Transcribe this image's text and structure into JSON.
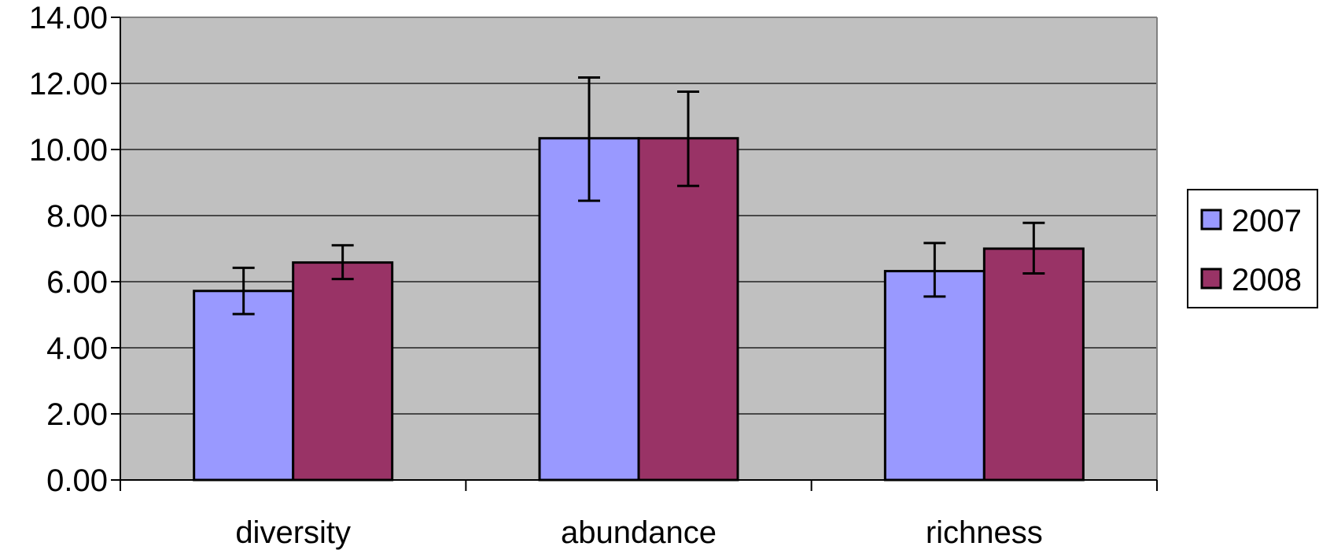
{
  "chart_data": {
    "type": "bar",
    "categories": [
      "diversity",
      "abundance",
      "richness"
    ],
    "series": [
      {
        "name": "2007",
        "color": "#9999FF",
        "values": [
          5.72,
          10.34,
          6.32
        ],
        "error_low": [
          5.02,
          8.45,
          5.55
        ],
        "error_high": [
          6.42,
          12.18,
          7.17
        ]
      },
      {
        "name": "2008",
        "color": "#993366",
        "values": [
          6.58,
          10.34,
          7.0
        ],
        "error_low": [
          6.08,
          8.9,
          6.25
        ],
        "error_high": [
          7.1,
          11.75,
          7.78
        ]
      }
    ],
    "ylim": [
      0,
      14
    ],
    "yticks": [
      "0.00",
      "2.00",
      "4.00",
      "6.00",
      "8.00",
      "10.00",
      "12.00",
      "14.00"
    ],
    "ytick_values": [
      0,
      2,
      4,
      6,
      8,
      10,
      12,
      14
    ],
    "title": "",
    "xlabel": "",
    "ylabel": "",
    "grid": true,
    "plot_background": "#C0C0C0",
    "legend_position": "right"
  }
}
